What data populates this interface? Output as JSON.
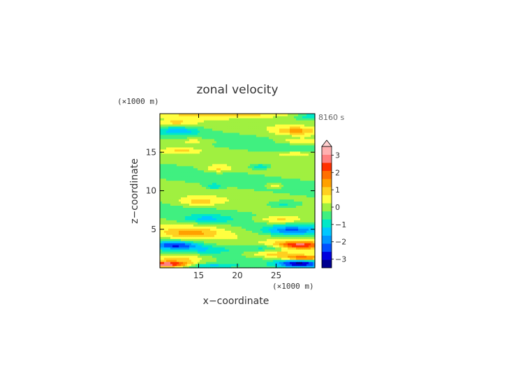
{
  "chart_data": {
    "type": "heatmap",
    "title": "zonal velocity",
    "time_label": "8160 s",
    "xlabel": "x−coordinate",
    "ylabel": "z−coordinate",
    "x_unit": "(×1000 m)",
    "y_unit": "(×1000 m)",
    "xlim": [
      10,
      30
    ],
    "ylim": [
      0,
      20
    ],
    "x_ticks": [
      {
        "value": 15,
        "label": "15"
      },
      {
        "value": 20,
        "label": "20"
      },
      {
        "value": 25,
        "label": "25"
      }
    ],
    "y_ticks": [
      {
        "value": 5,
        "label": "5"
      },
      {
        "value": 10,
        "label": "10"
      },
      {
        "value": 15,
        "label": "15"
      }
    ],
    "colorbar": {
      "extend": "max",
      "range": [
        -3.5,
        3.5
      ],
      "step": 0.5,
      "tick_labels": [
        {
          "value": 3,
          "label": "3"
        },
        {
          "value": 2,
          "label": "2"
        },
        {
          "value": 1,
          "label": "1"
        },
        {
          "value": 0,
          "label": "0"
        },
        {
          "value": -1,
          "label": "−1"
        },
        {
          "value": -2,
          "label": "−2"
        },
        {
          "value": -3,
          "label": "−3"
        }
      ],
      "colors": [
        "#000090",
        "#0000dd",
        "#0050ff",
        "#0096ff",
        "#00c8ff",
        "#00e8c8",
        "#40f080",
        "#a0f040",
        "#ffff40",
        "#ffd020",
        "#ffa000",
        "#ff7000",
        "#ff3000",
        "#ff8080",
        "#ffb0b0"
      ],
      "arrow_color": "#ffd0d0"
    },
    "background_value": 0.1,
    "features": [
      {
        "x": 11,
        "z": 0.5,
        "rx": 3.2,
        "rz": 0.35,
        "value": 3.2
      },
      {
        "x": 12.5,
        "z": 1.3,
        "rx": 3.5,
        "rz": 0.6,
        "value": 1.2
      },
      {
        "x": 16,
        "z": 0.3,
        "rx": 4,
        "rz": 0.35,
        "value": -1.5
      },
      {
        "x": 12,
        "z": 3.0,
        "rx": 3,
        "rz": 0.5,
        "value": -2.5
      },
      {
        "x": 16,
        "z": 2.4,
        "rx": 3.5,
        "rz": 0.5,
        "value": -0.8
      },
      {
        "x": 14,
        "z": 4.6,
        "rx": 3.8,
        "rz": 0.8,
        "value": 1.3
      },
      {
        "x": 16,
        "z": 6.4,
        "rx": 3,
        "rz": 0.5,
        "value": -1.0
      },
      {
        "x": 15,
        "z": 8.6,
        "rx": 2.5,
        "rz": 0.5,
        "value": 1.0
      },
      {
        "x": 17,
        "z": 10.6,
        "rx": 1.0,
        "rz": 0.4,
        "value": -1.0
      },
      {
        "x": 17.5,
        "z": 12.9,
        "rx": 1.6,
        "rz": 0.45,
        "value": 1.0
      },
      {
        "x": 13,
        "z": 15.3,
        "rx": 2,
        "rz": 0.3,
        "value": 0.8
      },
      {
        "x": 12.5,
        "z": 17.8,
        "rx": 2.5,
        "rz": 0.5,
        "value": -1.2
      },
      {
        "x": 12,
        "z": 18.9,
        "rx": 2.5,
        "rz": 0.35,
        "value": 1.0
      },
      {
        "x": 14.5,
        "z": 16.5,
        "rx": 2.5,
        "rz": 0.4,
        "value": 0.8
      },
      {
        "x": 28,
        "z": 0.6,
        "rx": 2.8,
        "rz": 0.5,
        "value": -3.0
      },
      {
        "x": 28.5,
        "z": 1.3,
        "rx": 2.5,
        "rz": 0.35,
        "value": 2.5
      },
      {
        "x": 25,
        "z": 1.8,
        "rx": 3.5,
        "rz": 0.5,
        "value": 1.2
      },
      {
        "x": 28,
        "z": 3.0,
        "rx": 3.0,
        "rz": 0.5,
        "value": 2.8
      },
      {
        "x": 24,
        "z": 2.6,
        "rx": 3,
        "rz": 0.4,
        "value": -1.0
      },
      {
        "x": 27,
        "z": 4.9,
        "rx": 3.5,
        "rz": 0.6,
        "value": -2.0
      },
      {
        "x": 25.5,
        "z": 6.3,
        "rx": 3,
        "rz": 0.5,
        "value": 1.2
      },
      {
        "x": 26,
        "z": 8.3,
        "rx": 2.5,
        "rz": 0.5,
        "value": -1.0
      },
      {
        "x": 24.8,
        "z": 10.7,
        "rx": 1.0,
        "rz": 0.35,
        "value": 1.0
      },
      {
        "x": 23,
        "z": 13.2,
        "rx": 1.4,
        "rz": 0.4,
        "value": -1.2
      },
      {
        "x": 27.5,
        "z": 14.8,
        "rx": 2.5,
        "rz": 0.35,
        "value": 1.0
      },
      {
        "x": 27.5,
        "z": 17.8,
        "rx": 2.5,
        "rz": 0.5,
        "value": 1.3
      },
      {
        "x": 28,
        "z": 16.5,
        "rx": 2.5,
        "rz": 0.35,
        "value": 1.0
      },
      {
        "x": 29.5,
        "z": 19.7,
        "rx": 2,
        "rz": 0.35,
        "value": -1.0
      },
      {
        "x": 20,
        "z": 19.9,
        "rx": 10,
        "rz": 0.35,
        "value": 1.0
      }
    ]
  }
}
